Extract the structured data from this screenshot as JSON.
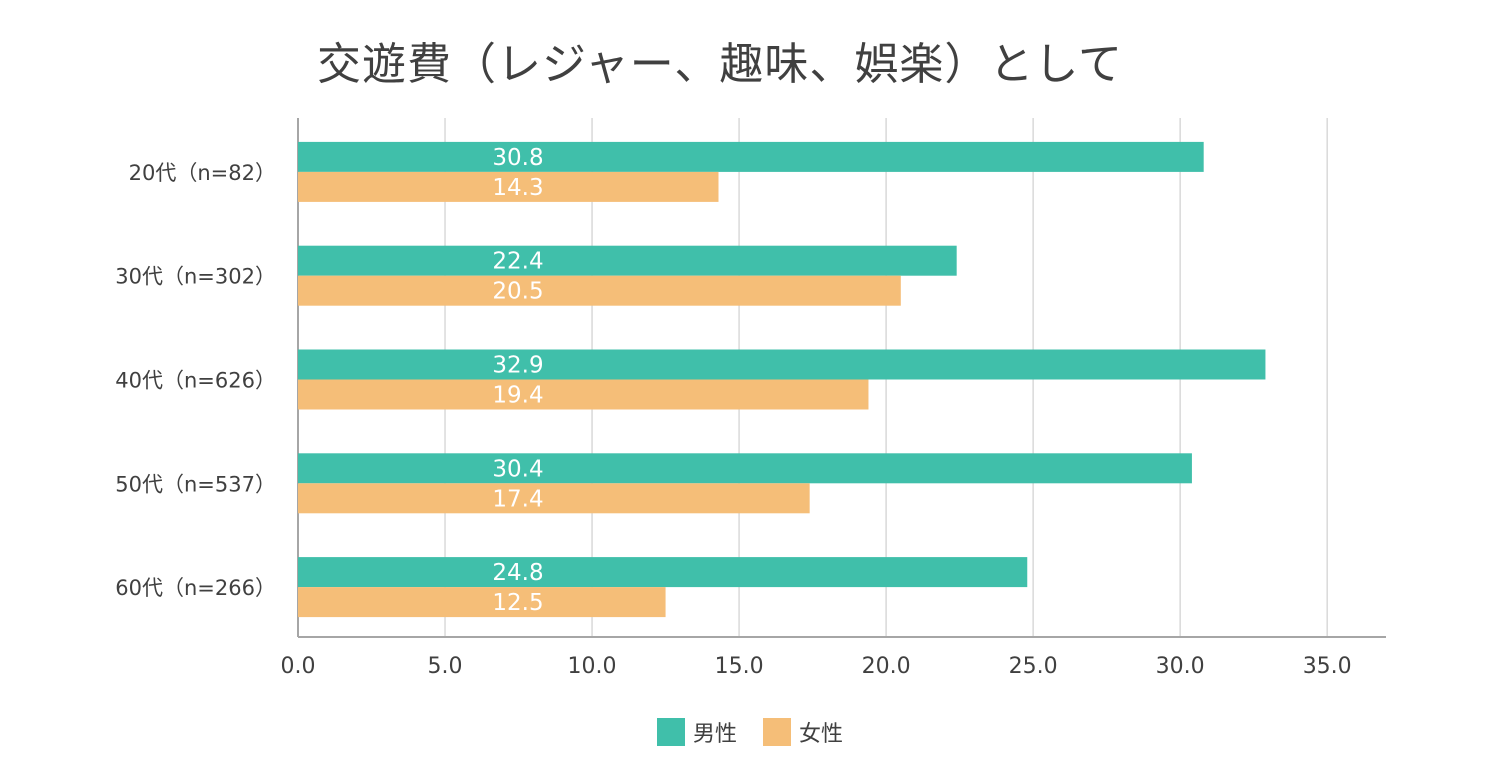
{
  "chart_data": {
    "type": "bar",
    "orientation": "horizontal",
    "title": "交遊費（レジャー、趣味、娯楽）として",
    "categories": [
      "20代（n=82）",
      "30代（n=302）",
      "40代（n=626）",
      "50代（n=537）",
      "60代（n=266）"
    ],
    "series": [
      {
        "name": "男性",
        "color": "#40bfaa",
        "values": [
          30.8,
          22.4,
          32.9,
          30.4,
          24.8
        ]
      },
      {
        "name": "女性",
        "color": "#f5be78",
        "values": [
          14.3,
          20.5,
          19.4,
          17.4,
          12.5
        ]
      }
    ],
    "xlim": [
      0,
      37
    ],
    "xticks": [
      "0.0",
      "5.0",
      "10.0",
      "15.0",
      "20.0",
      "25.0",
      "30.0",
      "35.0"
    ],
    "xtick_values": [
      0,
      5,
      10,
      15,
      20,
      25,
      30,
      35
    ],
    "grid": true,
    "legend_position": "bottom"
  }
}
